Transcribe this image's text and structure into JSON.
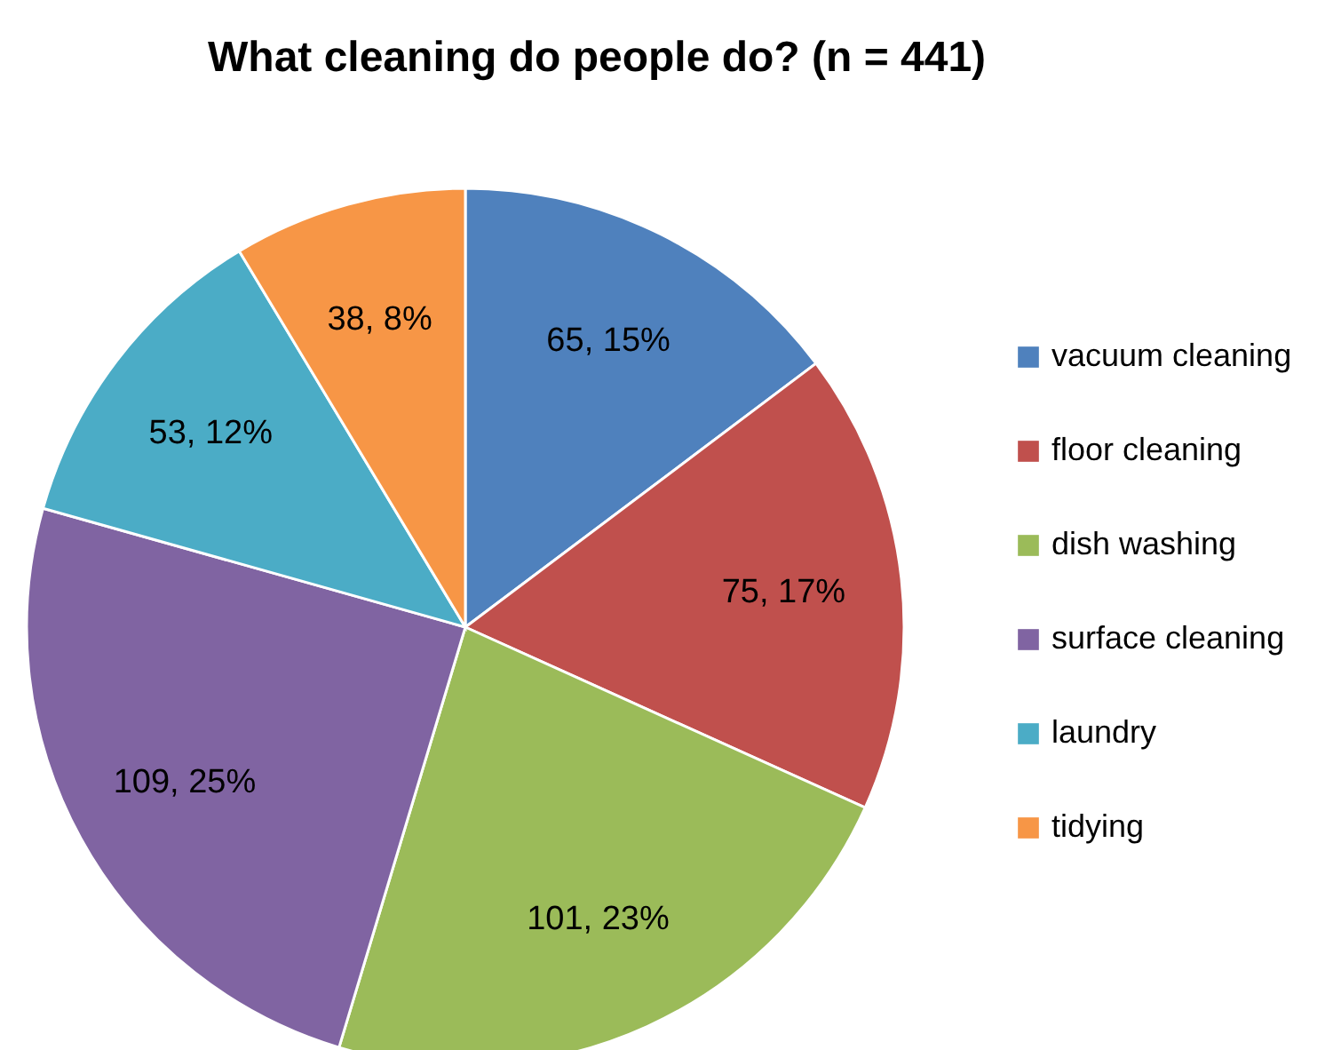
{
  "chart_data": {
    "type": "pie",
    "title": "What cleaning do people do? (n = 441)",
    "categories": [
      "vacuum cleaning",
      "floor cleaning",
      "dish washing",
      "surface cleaning",
      "laundry",
      "tidying"
    ],
    "values": [
      65,
      75,
      101,
      109,
      53,
      38
    ],
    "colors": [
      "#4f81bd",
      "#c0504d",
      "#9bbb59",
      "#8064a2",
      "#4bacc6",
      "#f79646"
    ],
    "value_labels": [
      "65, 15%",
      "75, 17%",
      "101, 23%",
      "109, 25%",
      "53, 12%",
      "38, 8%"
    ],
    "legend": "right"
  }
}
